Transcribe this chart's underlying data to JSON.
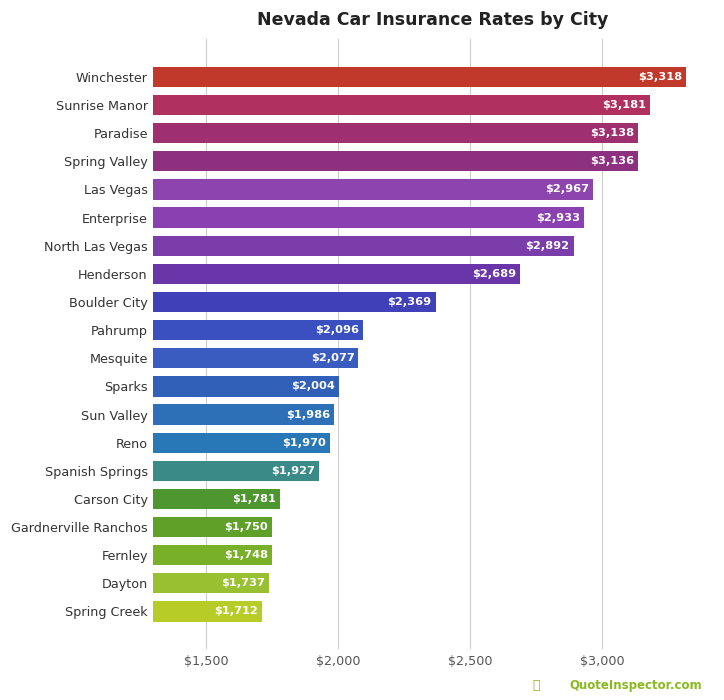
{
  "title": "Nevada Car Insurance Rates by City",
  "cities": [
    "Winchester",
    "Sunrise Manor",
    "Paradise",
    "Spring Valley",
    "Las Vegas",
    "Enterprise",
    "North Las Vegas",
    "Henderson",
    "Boulder City",
    "Pahrump",
    "Mesquite",
    "Sparks",
    "Sun Valley",
    "Reno",
    "Spanish Springs",
    "Carson City",
    "Gardnerville Ranchos",
    "Fernley",
    "Dayton",
    "Spring Creek"
  ],
  "values": [
    3318,
    3181,
    3138,
    3136,
    2967,
    2933,
    2892,
    2689,
    2369,
    2096,
    2077,
    2004,
    1986,
    1970,
    1927,
    1781,
    1750,
    1748,
    1737,
    1712
  ],
  "colors": [
    "#c0392b",
    "#b03060",
    "#9e3070",
    "#8e3080",
    "#8e44ad",
    "#8a40b0",
    "#7b3daa",
    "#6a35a8",
    "#4040b8",
    "#3a50c0",
    "#3a5cc0",
    "#3060b8",
    "#2e70b8",
    "#2878b8",
    "#3a8a88",
    "#4e9630",
    "#5ea028",
    "#78b028",
    "#98c030",
    "#b8cc28"
  ],
  "xlim_left": 1300,
  "xlim_right": 3420,
  "xticks": [
    1500,
    2000,
    2500,
    3000
  ],
  "xtick_labels": [
    "$1,500",
    "$2,000",
    "$2,500",
    "$3,000"
  ],
  "bar_height": 0.72,
  "background_color": "#ffffff",
  "grid_color": "#cccccc",
  "watermark": "QuoteInspector.com",
  "watermark_color": "#8ab820"
}
